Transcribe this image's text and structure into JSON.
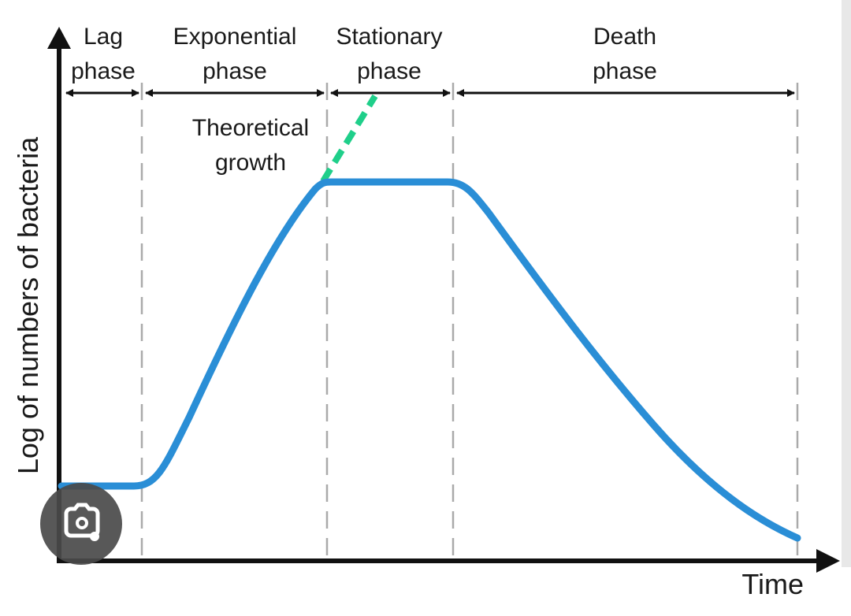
{
  "phases": [
    {
      "label": [
        "Lag",
        "phase"
      ]
    },
    {
      "label": [
        "Exponential",
        "phase"
      ]
    },
    {
      "label": [
        "Stationary",
        "phase"
      ]
    },
    {
      "label": [
        "Death",
        "phase"
      ]
    }
  ],
  "annotation": [
    "Theoretical",
    "growth"
  ],
  "axes": {
    "y_label": "Log of numbers of bacteria",
    "x_label": "Time"
  }
}
